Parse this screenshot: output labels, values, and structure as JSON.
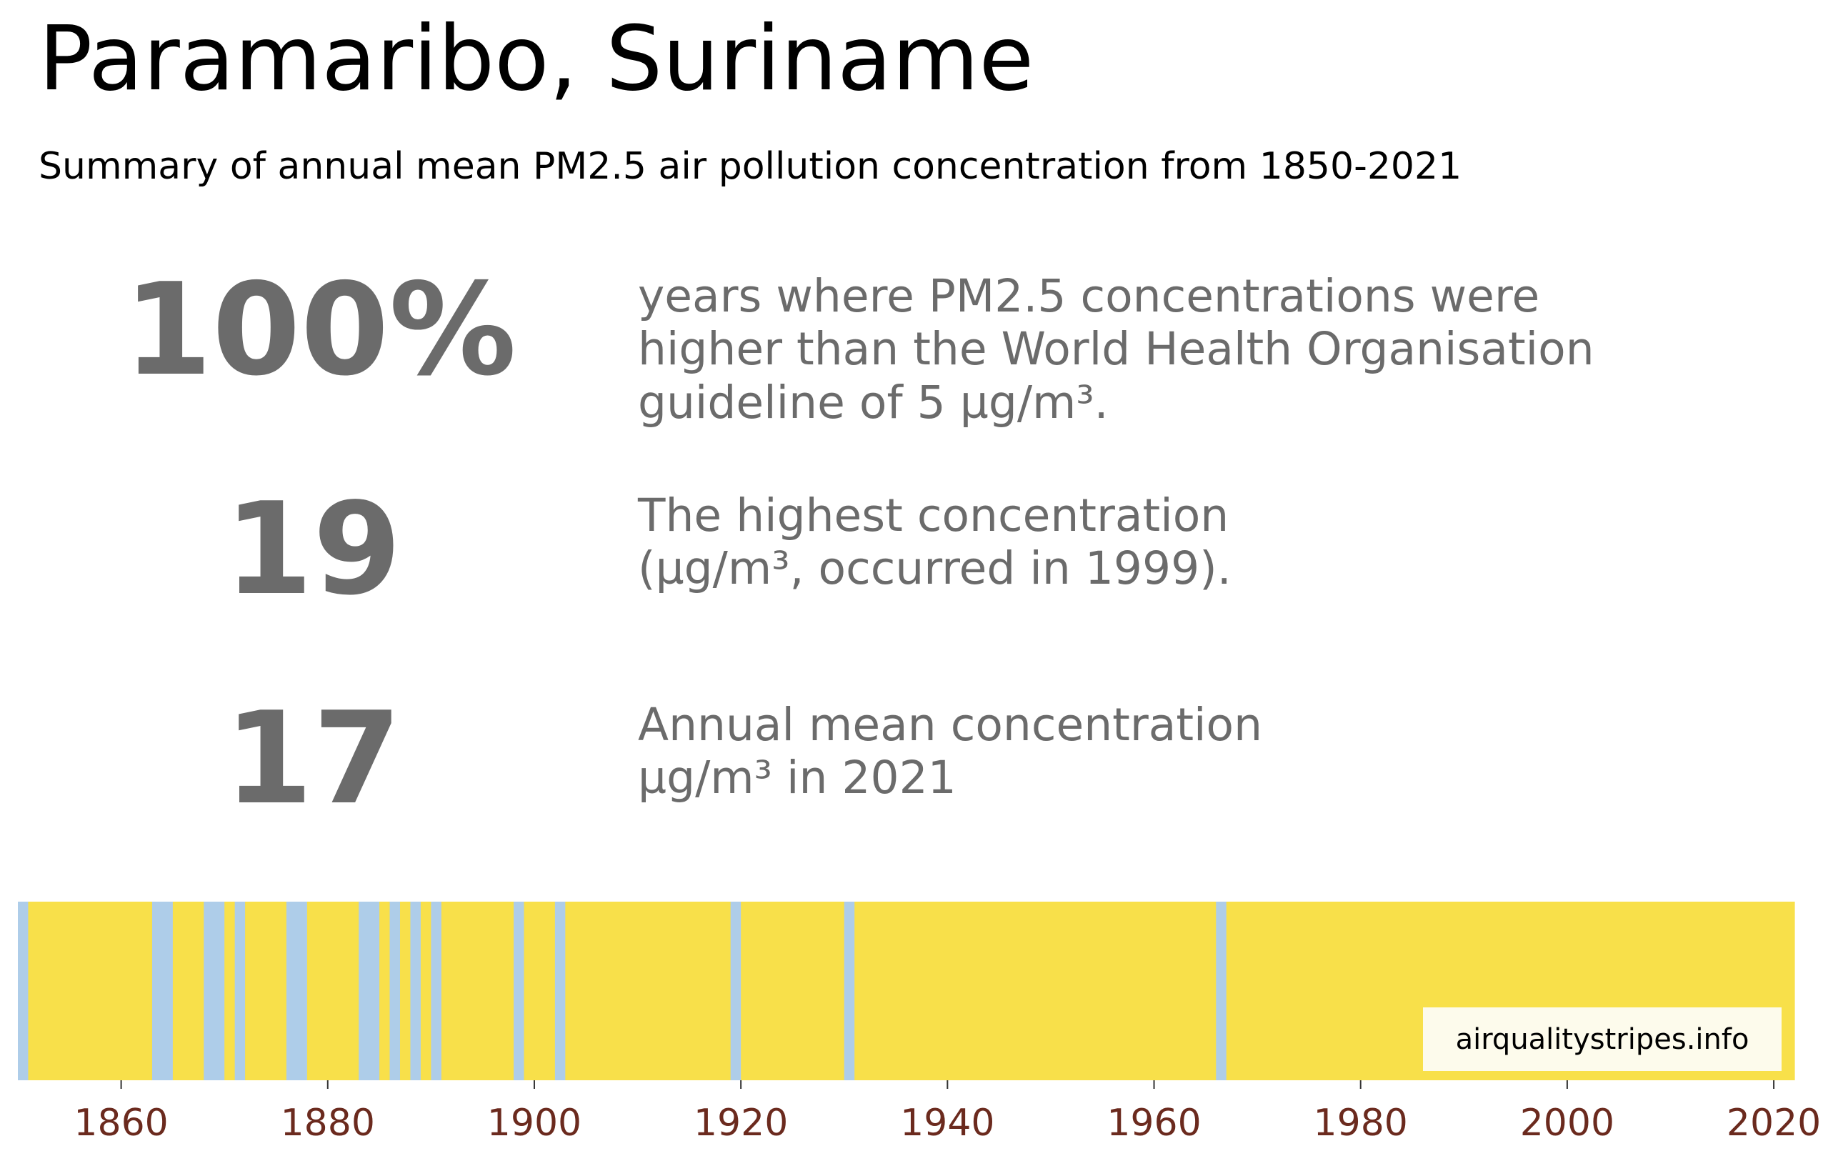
{
  "title": "Paramaribo, Suriname",
  "subtitle": "Summary of annual mean PM2.5 air pollution concentration from 1850-2021",
  "stats": [
    {
      "value": "100%",
      "description": [
        "years where PM2.5 concentrations were",
        "higher than the World Health Organisation",
        "guideline of 5 µg/m³."
      ]
    },
    {
      "value": "19",
      "description": [
        "The highest concentration",
        "(µg/m³, occurred in 1999)."
      ]
    },
    {
      "value": "17",
      "description": [
        "Annual mean concentration",
        "µg/m³ in 2021"
      ]
    }
  ],
  "watermark": "airqualitystripes.info",
  "colors": {
    "high": "#f8e04a",
    "low": "#aecde9",
    "stat_text": "#6b6b6b",
    "tick_label": "#6b2a1e",
    "watermark_bg": "#fdfbec"
  },
  "chart_data": {
    "type": "heatmap",
    "description_of_encoding": "",
    "x_range": [
      1850,
      2021
    ],
    "xticks": [
      1860,
      1880,
      1900,
      1920,
      1940,
      1960,
      1980,
      2000,
      2020
    ],
    "default_category": "high",
    "low_years": [
      1850,
      1863,
      1864,
      1868,
      1869,
      1871,
      1876,
      1877,
      1883,
      1884,
      1886,
      1888,
      1890,
      1898,
      1902,
      1919,
      1930,
      1966
    ]
  }
}
